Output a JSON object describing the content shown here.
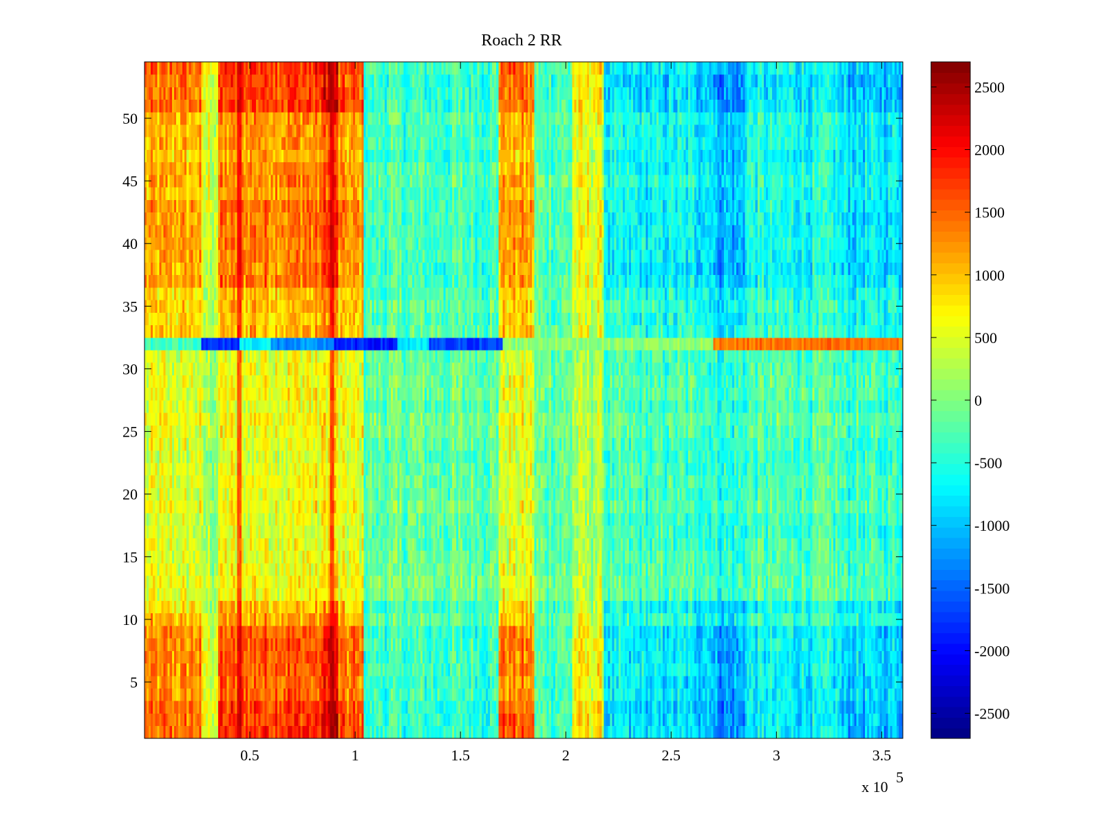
{
  "chart_data": {
    "type": "heatmap",
    "title": "Roach 2 RR",
    "xlabel": "",
    "ylabel": "",
    "x_exponent_label": {
      "base": "x 10",
      "exponent": "5"
    },
    "xlim": [
      0,
      3.6
    ],
    "ylim": [
      0.5,
      54.5
    ],
    "x_ticks": [
      0.5,
      1,
      1.5,
      2,
      2.5,
      3,
      3.5
    ],
    "x_tick_labels": [
      "0.5",
      "1",
      "1.5",
      "2",
      "2.5",
      "3",
      "3.5"
    ],
    "y_ticks": [
      5,
      10,
      15,
      20,
      25,
      30,
      35,
      40,
      45,
      50
    ],
    "y_tick_labels": [
      "5",
      "10",
      "15",
      "20",
      "25",
      "30",
      "35",
      "40",
      "45",
      "50"
    ],
    "n_rows": 54,
    "colormap": "jet",
    "colorbar": {
      "clim": [
        -2700,
        2700
      ],
      "ticks": [
        -2500,
        -2000,
        -1500,
        -1000,
        -500,
        0,
        500,
        1000,
        1500,
        2000,
        2500
      ],
      "tick_labels": [
        "-2500",
        "-2000",
        "-1500",
        "-1000",
        "-500",
        "0",
        "500",
        "1000",
        "1500",
        "2000",
        "2500"
      ]
    },
    "column_band_means": [
      {
        "x_range": [
          0.0,
          0.27
        ],
        "mean": 1200
      },
      {
        "x_range": [
          0.27,
          0.35
        ],
        "mean": 500
      },
      {
        "x_range": [
          0.35,
          0.45
        ],
        "mean": 1450
      },
      {
        "x_range": [
          0.45,
          0.85
        ],
        "mean": 1500
      },
      {
        "x_range": [
          0.85,
          0.92
        ],
        "mean": 1900
      },
      {
        "x_range": [
          0.92,
          1.04
        ],
        "mean": 1300
      },
      {
        "x_range": [
          1.04,
          1.68
        ],
        "mean": -350
      },
      {
        "x_range": [
          1.68,
          1.85
        ],
        "mean": 1250
      },
      {
        "x_range": [
          1.85,
          2.03
        ],
        "mean": -250
      },
      {
        "x_range": [
          2.03,
          2.18
        ],
        "mean": 600
      },
      {
        "x_range": [
          2.18,
          2.7
        ],
        "mean": -750
      },
      {
        "x_range": [
          2.7,
          2.85
        ],
        "mean": -1100
      },
      {
        "x_range": [
          2.85,
          3.3
        ],
        "mean": -650
      },
      {
        "x_range": [
          3.3,
          3.6
        ],
        "mean": -850
      }
    ],
    "row_32_band_means": [
      {
        "x_range": [
          0.0,
          0.27
        ],
        "mean": -300
      },
      {
        "x_range": [
          0.27,
          0.45
        ],
        "mean": -1800
      },
      {
        "x_range": [
          0.45,
          0.6
        ],
        "mean": -700
      },
      {
        "x_range": [
          0.6,
          0.9
        ],
        "mean": -1300
      },
      {
        "x_range": [
          0.9,
          1.2
        ],
        "mean": -1900
      },
      {
        "x_range": [
          1.2,
          1.35
        ],
        "mean": -800
      },
      {
        "x_range": [
          1.35,
          1.7
        ],
        "mean": -1700
      },
      {
        "x_range": [
          1.7,
          2.7
        ],
        "mean": 100
      },
      {
        "x_range": [
          2.7,
          3.6
        ],
        "mean": 1400
      }
    ],
    "highlights": [
      {
        "type": "vertical-line",
        "x": 0.45,
        "value": 2100
      },
      {
        "type": "vertical-line",
        "x": 0.89,
        "value": 2300
      },
      {
        "type": "horizontal-band",
        "row": 32,
        "value": "see row_32_band_means"
      }
    ]
  }
}
